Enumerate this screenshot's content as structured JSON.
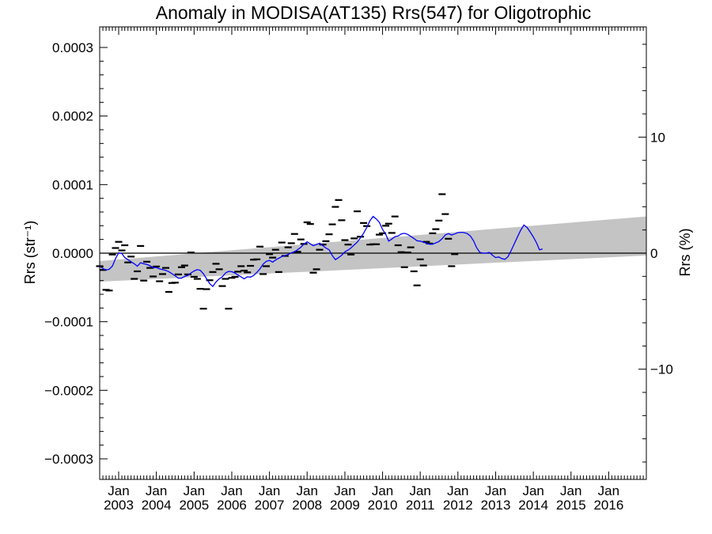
{
  "chart_data": {
    "type": "scatter",
    "title": "Anomaly in MODISA(AT135) Rrs(547) for Oligotrophic",
    "ylabel_left": "Rrs (str⁻¹)",
    "ylabel_right": "Rrs (%)",
    "ylim_left": [
      -0.00033,
      0.00033
    ],
    "ylim_right": [
      -19.5,
      19.5
    ],
    "xlim": [
      "2002-07-01",
      "2016-12-31"
    ],
    "left_ticks": [
      {
        "v": 0.0003,
        "label": "0.0003"
      },
      {
        "v": 0.0002,
        "label": "0.0002"
      },
      {
        "v": 0.0001,
        "label": "0.0001"
      },
      {
        "v": 0.0,
        "label": "0.0000"
      },
      {
        "v": -0.0001,
        "label": "−0.0001"
      },
      {
        "v": -0.0002,
        "label": "−0.0002"
      },
      {
        "v": -0.0003,
        "label": "−0.0003"
      }
    ],
    "right_ticks": [
      {
        "v": 10,
        "label": "10"
      },
      {
        "v": 0,
        "label": "0"
      },
      {
        "v": -10,
        "label": "−10"
      }
    ],
    "x_ticks": [
      {
        "date": "2003-01-01",
        "month": "Jan",
        "year": "2003"
      },
      {
        "date": "2004-01-01",
        "month": "Jan",
        "year": "2004"
      },
      {
        "date": "2005-01-01",
        "month": "Jan",
        "year": "2005"
      },
      {
        "date": "2006-01-01",
        "month": "Jan",
        "year": "2006"
      },
      {
        "date": "2007-01-01",
        "month": "Jan",
        "year": "2007"
      },
      {
        "date": "2008-01-01",
        "month": "Jan",
        "year": "2008"
      },
      {
        "date": "2009-01-01",
        "month": "Jan",
        "year": "2009"
      },
      {
        "date": "2010-01-01",
        "month": "Jan",
        "year": "2010"
      },
      {
        "date": "2011-01-01",
        "month": "Jan",
        "year": "2011"
      },
      {
        "date": "2012-01-01",
        "month": "Jan",
        "year": "2012"
      },
      {
        "date": "2013-01-01",
        "month": "Jan",
        "year": "2013"
      },
      {
        "date": "2014-01-01",
        "month": "Jan",
        "year": "2014"
      },
      {
        "date": "2015-01-01",
        "month": "Jan",
        "year": "2015"
      },
      {
        "date": "2016-01-01",
        "month": "Jan",
        "year": "2016"
      }
    ],
    "band": {
      "color": "#c4c4c4",
      "upper": [
        {
          "date": "2002-07-01",
          "y": -1.15e-05
        },
        {
          "date": "2016-12-31",
          "y": 5.35e-05
        }
      ],
      "lower": [
        {
          "date": "2002-07-01",
          "y": -4.15e-05
        },
        {
          "date": "2016-12-31",
          "y": -3.5e-06
        }
      ]
    },
    "zero_line": {
      "y": 0.0,
      "color": "#000000"
    },
    "smoothed_series": {
      "color": "#0000ff",
      "points": [
        [
          "2002-07-01",
          -1.85e-05
        ],
        [
          "2002-08-01",
          -2.25e-05
        ],
        [
          "2002-09-01",
          -2.45e-05
        ],
        [
          "2002-10-01",
          -2.35e-05
        ],
        [
          "2002-11-01",
          -1.9e-05
        ],
        [
          "2002-12-01",
          -8e-06
        ],
        [
          "2003-01-01",
          5e-07
        ],
        [
          "2003-02-01",
          -5e-07
        ],
        [
          "2003-03-01",
          -6.5e-06
        ],
        [
          "2003-04-01",
          -9.5e-06
        ],
        [
          "2003-05-01",
          -1.25e-05
        ],
        [
          "2003-06-01",
          -1.55e-05
        ],
        [
          "2003-07-01",
          -1.9e-05
        ],
        [
          "2003-08-01",
          -1.4e-05
        ],
        [
          "2003-09-01",
          -1.55e-05
        ],
        [
          "2003-10-01",
          -1.65e-05
        ],
        [
          "2003-11-01",
          -1.85e-05
        ],
        [
          "2003-12-01",
          -2.1e-05
        ],
        [
          "2004-01-01",
          -2.1e-05
        ],
        [
          "2004-02-01",
          -2.3e-05
        ],
        [
          "2004-03-01",
          -2.4e-05
        ],
        [
          "2004-04-01",
          -2.5e-05
        ],
        [
          "2004-05-01",
          -2.7e-05
        ],
        [
          "2004-06-01",
          -3e-05
        ],
        [
          "2004-07-01",
          -3.3e-05
        ],
        [
          "2004-08-01",
          -3.65e-05
        ],
        [
          "2004-09-01",
          -3.65e-05
        ],
        [
          "2004-10-01",
          -3.4e-05
        ],
        [
          "2004-11-01",
          -3.25e-05
        ],
        [
          "2004-12-01",
          -2.9e-05
        ],
        [
          "2005-01-01",
          -2.6e-05
        ],
        [
          "2005-02-01",
          -2.4e-05
        ],
        [
          "2005-03-01",
          -2.5e-05
        ],
        [
          "2005-04-01",
          -3e-05
        ],
        [
          "2005-05-01",
          -3.7e-05
        ],
        [
          "2005-06-01",
          -4.45e-05
        ],
        [
          "2005-07-01",
          -4.85e-05
        ],
        [
          "2005-08-01",
          -4.2e-05
        ],
        [
          "2005-09-01",
          -3.75e-05
        ],
        [
          "2005-10-01",
          -3.45e-05
        ],
        [
          "2005-11-01",
          -2.9e-05
        ],
        [
          "2005-12-01",
          -2.65e-05
        ],
        [
          "2006-01-01",
          -2.7e-05
        ],
        [
          "2006-02-01",
          -2.9e-05
        ],
        [
          "2006-03-01",
          -3.2e-05
        ],
        [
          "2006-04-01",
          -3.45e-05
        ],
        [
          "2006-05-01",
          -3.75e-05
        ],
        [
          "2006-06-01",
          -3.45e-05
        ],
        [
          "2006-07-01",
          -3.5e-05
        ],
        [
          "2006-08-01",
          -3.25e-05
        ],
        [
          "2006-09-01",
          -2.8e-05
        ],
        [
          "2006-10-01",
          -2.3e-05
        ],
        [
          "2006-11-01",
          -1.6e-05
        ],
        [
          "2006-12-01",
          -1.2e-05
        ],
        [
          "2007-01-01",
          -1.05e-05
        ],
        [
          "2007-02-01",
          -1.3e-05
        ],
        [
          "2007-03-01",
          -1e-05
        ],
        [
          "2007-04-01",
          -7.5e-06
        ],
        [
          "2007-05-01",
          -5e-06
        ],
        [
          "2007-06-01",
          -3.5e-06
        ],
        [
          "2007-07-01",
          -2e-06
        ],
        [
          "2007-08-01",
          5e-07
        ],
        [
          "2007-09-01",
          2e-06
        ],
        [
          "2007-10-01",
          5e-06
        ],
        [
          "2007-11-01",
          8.5e-06
        ],
        [
          "2007-12-01",
          1.3e-05
        ],
        [
          "2008-01-01",
          1.65e-05
        ],
        [
          "2008-02-01",
          1.35e-05
        ],
        [
          "2008-03-01",
          1.1e-05
        ],
        [
          "2008-04-01",
          1.25e-05
        ],
        [
          "2008-05-01",
          1.45e-05
        ],
        [
          "2008-06-01",
          1.1e-05
        ],
        [
          "2008-07-01",
          7.5e-06
        ],
        [
          "2008-08-01",
          5e-06
        ],
        [
          "2008-09-01",
          -3.5e-06
        ],
        [
          "2008-10-01",
          -9.5e-06
        ],
        [
          "2008-11-01",
          -6.5e-06
        ],
        [
          "2008-12-01",
          -3e-06
        ],
        [
          "2009-01-01",
          2e-06
        ],
        [
          "2009-02-01",
          4.5e-06
        ],
        [
          "2009-03-01",
          7.5e-06
        ],
        [
          "2009-04-01",
          1.2e-05
        ],
        [
          "2009-05-01",
          1.6e-05
        ],
        [
          "2009-06-01",
          2.25e-05
        ],
        [
          "2009-07-01",
          2.9e-05
        ],
        [
          "2009-08-01",
          3.75e-05
        ],
        [
          "2009-09-01",
          4.75e-05
        ],
        [
          "2009-10-01",
          5.35e-05
        ],
        [
          "2009-11-01",
          5e-05
        ],
        [
          "2009-12-01",
          4.5e-05
        ],
        [
          "2010-01-01",
          3.45e-05
        ],
        [
          "2010-02-01",
          2.75e-05
        ],
        [
          "2010-03-01",
          1.75e-05
        ],
        [
          "2010-04-01",
          2.05e-05
        ],
        [
          "2010-05-01",
          2.4e-05
        ],
        [
          "2010-06-01",
          2.5e-05
        ],
        [
          "2010-07-01",
          2.8e-05
        ],
        [
          "2010-08-01",
          2.9e-05
        ],
        [
          "2010-09-01",
          2.75e-05
        ],
        [
          "2010-10-01",
          2.45e-05
        ],
        [
          "2010-11-01",
          2.15e-05
        ],
        [
          "2010-12-01",
          1.8e-05
        ],
        [
          "2011-01-01",
          1.75e-05
        ],
        [
          "2011-02-01",
          1.6e-05
        ],
        [
          "2011-03-01",
          1.45e-05
        ],
        [
          "2011-04-01",
          1.3e-05
        ],
        [
          "2011-05-01",
          1.3e-05
        ],
        [
          "2011-06-01",
          1.5e-05
        ],
        [
          "2011-07-01",
          1.7e-05
        ],
        [
          "2011-08-01",
          2.1e-05
        ],
        [
          "2011-09-01",
          2.65e-05
        ],
        [
          "2011-10-01",
          2.85e-05
        ],
        [
          "2011-11-01",
          2.65e-05
        ],
        [
          "2011-12-01",
          2.8e-05
        ],
        [
          "2012-01-01",
          3e-05
        ],
        [
          "2012-02-01",
          3.05e-05
        ],
        [
          "2012-03-01",
          3e-05
        ],
        [
          "2012-04-01",
          2.85e-05
        ],
        [
          "2012-05-01",
          2.5e-05
        ],
        [
          "2012-06-01",
          1.8e-05
        ],
        [
          "2012-07-01",
          8e-06
        ],
        [
          "2012-08-01",
          1e-06
        ],
        [
          "2012-09-01",
          0.0
        ],
        [
          "2012-10-01",
          0.0
        ],
        [
          "2012-11-01",
          1e-06
        ],
        [
          "2012-12-01",
          -3e-06
        ],
        [
          "2013-01-01",
          -6.5e-06
        ],
        [
          "2013-02-01",
          -5.5e-06
        ],
        [
          "2013-03-01",
          -8e-06
        ],
        [
          "2013-04-01",
          -9e-06
        ],
        [
          "2013-05-01",
          -5e-06
        ],
        [
          "2013-06-01",
          4e-06
        ],
        [
          "2013-07-01",
          1.4e-05
        ],
        [
          "2013-08-01",
          2.4e-05
        ],
        [
          "2013-09-01",
          3.35e-05
        ],
        [
          "2013-10-01",
          4.1e-05
        ],
        [
          "2013-11-01",
          3.75e-05
        ],
        [
          "2013-12-01",
          3.1e-05
        ],
        [
          "2014-01-01",
          2.35e-05
        ],
        [
          "2014-02-01",
          1.5e-05
        ],
        [
          "2014-03-01",
          5e-06
        ],
        [
          "2014-04-01",
          6e-06
        ]
      ],
      "dates_note": ""
    },
    "monthly_points": [
      [
        "2002-07-01",
        -1.9e-05
      ],
      [
        "2002-08-01",
        -2.45e-05
      ],
      [
        "2002-09-01",
        -5.35e-05
      ],
      [
        "2002-10-01",
        -5.45e-05
      ],
      [
        "2002-11-01",
        -2e-06
      ],
      [
        "2002-12-01",
        7.5e-06
      ],
      [
        "2003-01-01",
        1.65e-05
      ],
      [
        "2003-02-01",
        4e-06
      ],
      [
        "2003-03-01",
        1.15e-05
      ],
      [
        "2003-04-01",
        -1.35e-05
      ],
      [
        "2003-05-01",
        -5e-06
      ],
      [
        "2003-06-01",
        -3.75e-05
      ],
      [
        "2003-07-01",
        -2.65e-05
      ],
      [
        "2003-08-01",
        1.05e-05
      ],
      [
        "2003-09-01",
        -4e-05
      ],
      [
        "2003-10-01",
        -1.25e-05
      ],
      [
        "2003-11-01",
        -2.15e-05
      ],
      [
        "2003-12-01",
        -3.4e-05
      ],
      [
        "2004-01-01",
        -1.95e-05
      ],
      [
        "2004-02-01",
        -4.1e-05
      ],
      [
        "2004-03-01",
        -3.05e-05
      ],
      [
        "2004-04-01",
        -2.15e-05
      ],
      [
        "2004-05-01",
        -5.65e-05
      ],
      [
        "2004-06-01",
        -4.35e-05
      ],
      [
        "2004-07-01",
        -4.3e-05
      ],
      [
        "2004-08-01",
        -3.1e-05
      ],
      [
        "2004-09-01",
        -2.05e-05
      ],
      [
        "2004-10-01",
        -1.8e-05
      ],
      [
        "2004-11-01",
        -3.1e-05
      ],
      [
        "2004-12-01",
        1e-06
      ],
      [
        "2005-01-01",
        -3.45e-05
      ],
      [
        "2005-02-01",
        -3.75e-05
      ],
      [
        "2005-03-01",
        -5.2e-05
      ],
      [
        "2005-04-01",
        -8.1e-05
      ],
      [
        "2005-05-01",
        -5.25e-05
      ],
      [
        "2005-06-01",
        -3.95e-05
      ],
      [
        "2005-07-01",
        -2.75e-05
      ],
      [
        "2005-08-01",
        -1.55e-05
      ],
      [
        "2005-09-01",
        -2.35e-05
      ],
      [
        "2005-10-01",
        -4.8e-05
      ],
      [
        "2005-11-01",
        -3.75e-05
      ],
      [
        "2005-12-01",
        -8.1e-05
      ],
      [
        "2006-01-01",
        -3.6e-05
      ],
      [
        "2006-02-01",
        -3.45e-05
      ],
      [
        "2006-03-01",
        -2.7e-05
      ],
      [
        "2006-04-01",
        -1.9e-05
      ],
      [
        "2006-05-01",
        -2.55e-05
      ],
      [
        "2006-06-01",
        -2.8e-05
      ],
      [
        "2006-07-01",
        -1.85e-05
      ],
      [
        "2006-08-01",
        -9.5e-06
      ],
      [
        "2006-09-01",
        -9e-06
      ],
      [
        "2006-10-01",
        9.5e-06
      ],
      [
        "2006-11-01",
        -3.05e-05
      ],
      [
        "2006-12-01",
        -1.9e-05
      ],
      [
        "2007-01-01",
        -1.5e-06
      ],
      [
        "2007-02-01",
        -6.5e-06
      ],
      [
        "2007-03-01",
        5e-06
      ],
      [
        "2007-04-01",
        -2.75e-05
      ],
      [
        "2007-05-01",
        1.55e-05
      ],
      [
        "2007-06-01",
        -4e-06
      ],
      [
        "2007-07-01",
        8.5e-06
      ],
      [
        "2007-08-01",
        1.45e-05
      ],
      [
        "2007-09-01",
        2.8e-05
      ],
      [
        "2007-10-01",
        2e-06
      ],
      [
        "2007-11-01",
        2e-05
      ],
      [
        "2007-12-01",
        1.35e-05
      ],
      [
        "2008-01-01",
        4.5e-05
      ],
      [
        "2008-02-01",
        4.25e-05
      ],
      [
        "2008-03-01",
        -2.85e-05
      ],
      [
        "2008-04-01",
        -2.35e-05
      ],
      [
        "2008-05-01",
        5e-06
      ],
      [
        "2008-06-01",
        1.25e-05
      ],
      [
        "2008-07-01",
        1.75e-05
      ],
      [
        "2008-08-01",
        2.75e-05
      ],
      [
        "2008-09-01",
        4.2e-05
      ],
      [
        "2008-10-01",
        6.75e-05
      ],
      [
        "2008-11-01",
        7.75e-05
      ],
      [
        "2008-12-01",
        4.8e-05
      ],
      [
        "2009-01-01",
        1.9e-05
      ],
      [
        "2009-02-01",
        1.25e-05
      ],
      [
        "2009-03-01",
        -2e-06
      ],
      [
        "2009-04-01",
        2.15e-05
      ],
      [
        "2009-05-01",
        6.1e-05
      ],
      [
        "2009-06-01",
        2.4e-05
      ],
      [
        "2009-07-01",
        4.4e-05
      ],
      [
        "2009-08-01",
        3.95e-05
      ],
      [
        "2009-09-01",
        1.25e-05
      ],
      [
        "2009-10-01",
        1.3e-05
      ],
      [
        "2009-11-01",
        1.3e-05
      ],
      [
        "2009-12-01",
        2.7e-05
      ],
      [
        "2010-01-01",
        2.9e-05
      ],
      [
        "2010-02-01",
        4e-05
      ],
      [
        "2010-03-01",
        4.3e-05
      ],
      [
        "2010-04-01",
        2.95e-05
      ],
      [
        "2010-05-01",
        5.35e-05
      ],
      [
        "2010-06-01",
        1.15e-05
      ],
      [
        "2010-07-01",
        1.5e-06
      ],
      [
        "2010-08-01",
        -2.05e-05
      ],
      [
        "2010-09-01",
        1e-06
      ],
      [
        "2010-10-01",
        8.5e-06
      ],
      [
        "2010-11-01",
        -2.65e-05
      ],
      [
        "2010-12-01",
        -4.7e-05
      ],
      [
        "2011-01-01",
        -9e-06
      ],
      [
        "2011-02-01",
        -1.8e-05
      ],
      [
        "2011-03-01",
        1.65e-05
      ],
      [
        "2011-04-01",
        1.4e-05
      ],
      [
        "2011-05-01",
        2.9e-05
      ],
      [
        "2011-06-01",
        3.5e-05
      ],
      [
        "2011-07-01",
        4.75e-05
      ],
      [
        "2011-08-01",
        8.6e-05
      ],
      [
        "2011-09-01",
        5.7e-05
      ],
      [
        "2011-10-01",
        2.1e-05
      ],
      [
        "2011-11-01",
        -1.9e-05
      ],
      [
        "2011-12-01",
        -1.5e-06
      ]
    ]
  }
}
